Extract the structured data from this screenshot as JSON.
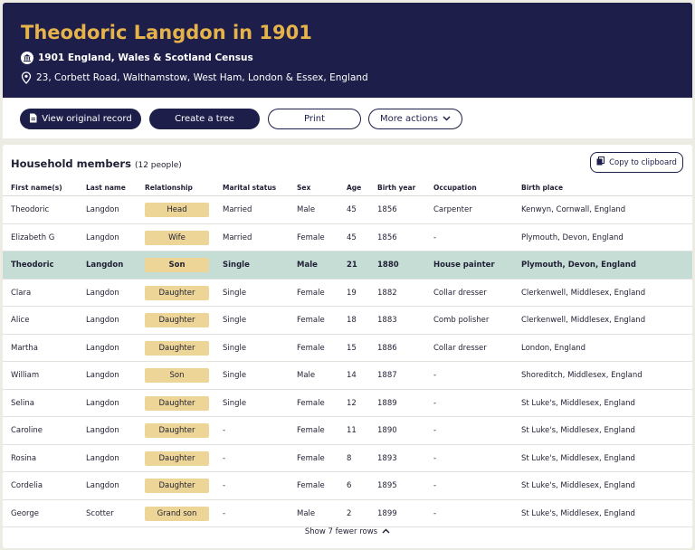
{
  "header": {
    "title": "Theodoric Langdon in 1901",
    "census": "1901 England, Wales & Scotland Census",
    "address": "23, Corbett Road, Walthamstow, West Ham, London & Essex, England"
  },
  "actions": {
    "view_original": "View original record",
    "create_tree": "Create a tree",
    "print": "Print",
    "more_actions": "More actions"
  },
  "household": {
    "title": "Household members",
    "count": "(12 people)",
    "copy_label": "Copy to clipboard",
    "columns": [
      "First name(s)",
      "Last name",
      "Relationship",
      "Marital status",
      "Sex",
      "Age",
      "Birth year",
      "Occupation",
      "Birth place"
    ],
    "rows": [
      [
        "Theodoric",
        "Langdon",
        "Head",
        "Married",
        "Male",
        "45",
        "1856",
        "Carpenter",
        "Kenwyn, Cornwall, England"
      ],
      [
        "Elizabeth G",
        "Langdon",
        "Wife",
        "Married",
        "Female",
        "45",
        "1856",
        "-",
        "Plymouth, Devon, England"
      ],
      [
        "Theodoric",
        "Langdon",
        "Son",
        "Single",
        "Male",
        "21",
        "1880",
        "House painter",
        "Plymouth, Devon, England"
      ],
      [
        "Clara",
        "Langdon",
        "Daughter",
        "Single",
        "Female",
        "19",
        "1882",
        "Collar dresser",
        "Clerkenwell, Middlesex, England"
      ],
      [
        "Alice",
        "Langdon",
        "Daughter",
        "Single",
        "Female",
        "18",
        "1883",
        "Comb polisher",
        "Clerkenwell, Middlesex, England"
      ],
      [
        "Martha",
        "Langdon",
        "Daughter",
        "Single",
        "Female",
        "15",
        "1886",
        "Collar dresser",
        "London, England"
      ],
      [
        "William",
        "Langdon",
        "Son",
        "Single",
        "Male",
        "14",
        "1887",
        "-",
        "Shoreditch, Middlesex, England"
      ],
      [
        "Selina",
        "Langdon",
        "Daughter",
        "Single",
        "Female",
        "12",
        "1889",
        "-",
        "St Luke's, Middlesex, England"
      ],
      [
        "Caroline",
        "Langdon",
        "Daughter",
        "-",
        "Female",
        "11",
        "1890",
        "-",
        "St Luke's, Middlesex, England"
      ],
      [
        "Rosina",
        "Langdon",
        "Daughter",
        "-",
        "Female",
        "8",
        "1893",
        "-",
        "St Luke's, Middlesex, England"
      ],
      [
        "Cordelia",
        "Langdon",
        "Daughter",
        "-",
        "Female",
        "6",
        "1895",
        "-",
        "St Luke's, Middlesex, England"
      ],
      [
        "George",
        "Scotter",
        "Grand son",
        "-",
        "Male",
        "2",
        "1899",
        "-",
        "St Luke's, Middlesex, England"
      ]
    ],
    "highlight_row": 2,
    "show_fewer": "Show 7 fewer rows"
  },
  "colors": {
    "header_bg": "#1d1f4a",
    "title": "#e6b24a",
    "badge": "#ecd596",
    "highlight": "#c6ddd6"
  }
}
